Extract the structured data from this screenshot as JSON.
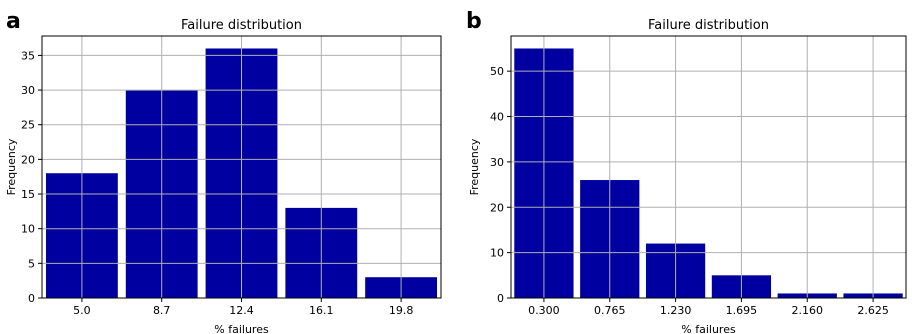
{
  "chart_data": [
    {
      "type": "bar",
      "panel_label": "a",
      "title": "Failure distribution",
      "xlabel": "% failures",
      "ylabel": "Frequency",
      "categories": [
        "5.0",
        "8.7",
        "12.4",
        "16.1",
        "19.8"
      ],
      "values": [
        18,
        30,
        36,
        13,
        3
      ],
      "ylim": [
        0,
        37.8
      ],
      "yticks": [
        0,
        5,
        10,
        15,
        20,
        25,
        30,
        35
      ],
      "grid": true,
      "bar_color": "#0000a0"
    },
    {
      "type": "bar",
      "panel_label": "b",
      "title": "Failure distribution",
      "xlabel": "% failures",
      "ylabel": "Frequency",
      "categories": [
        "0.300",
        "0.765",
        "1.230",
        "1.695",
        "2.160",
        "2.625"
      ],
      "values": [
        55,
        26,
        12,
        5,
        1,
        1
      ],
      "ylim": [
        0,
        57.75
      ],
      "yticks": [
        0,
        10,
        20,
        30,
        40,
        50
      ],
      "grid": true,
      "bar_color": "#0000a0"
    }
  ]
}
